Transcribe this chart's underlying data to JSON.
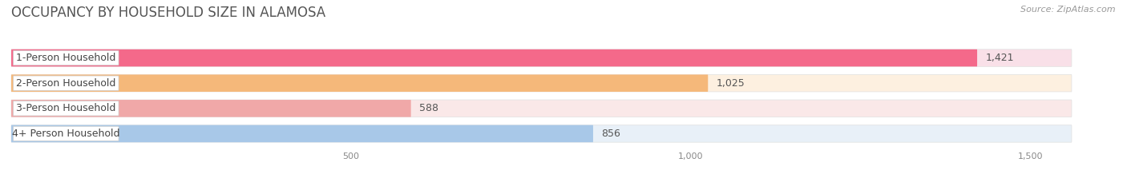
{
  "title": "OCCUPANCY BY HOUSEHOLD SIZE IN ALAMOSA",
  "source": "Source: ZipAtlas.com",
  "categories": [
    "1-Person Household",
    "2-Person Household",
    "3-Person Household",
    "4+ Person Household"
  ],
  "values": [
    1421,
    1025,
    588,
    856
  ],
  "bar_colors": [
    "#f4698a",
    "#f5b87a",
    "#f0a8a8",
    "#a8c8e8"
  ],
  "bar_bg_colors": [
    "#f9e0e8",
    "#fdf0e0",
    "#fae8e8",
    "#e8f0f8"
  ],
  "value_labels": [
    "1,421",
    "1,025",
    "588",
    "856"
  ],
  "xlim_max": 1600,
  "bg_bar_width": 1560,
  "xticks": [
    500,
    1000,
    1500
  ],
  "xtick_labels": [
    "500",
    "1,000",
    "1,500"
  ],
  "background_color": "#ffffff",
  "grid_color": "#e0e0e0",
  "title_fontsize": 12,
  "label_fontsize": 9,
  "value_fontsize": 9,
  "source_fontsize": 8,
  "tick_fontsize": 8
}
